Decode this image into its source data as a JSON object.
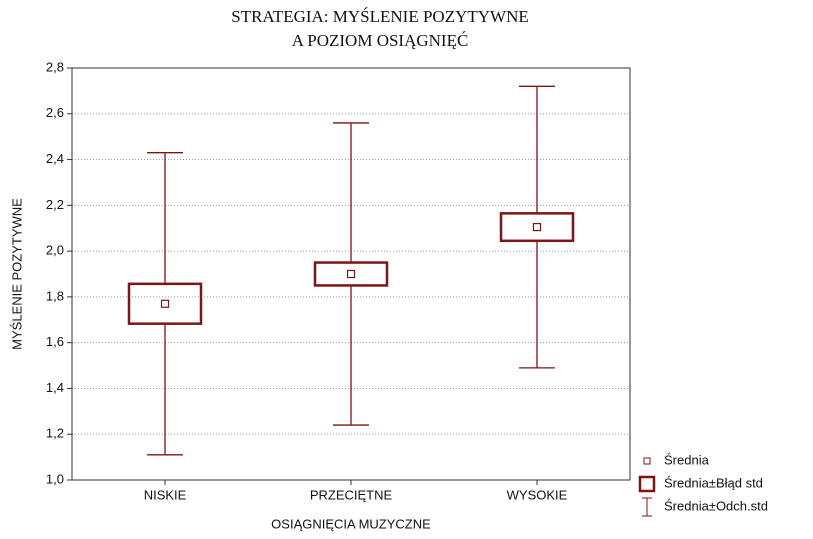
{
  "chart_data": {
    "type": "box",
    "title": [
      "STRATEGIA: MYŚLENIE POZYTYWNE",
      "A POZIOM OSIĄGNIĘĆ"
    ],
    "x_label": "OSIĄGNIĘCIA MUZYCZNE",
    "y_label": "MYŚLENIE POZYTYWNE",
    "categories": [
      "NISKIE",
      "PRZECIĘTNE",
      "WYSOKIE"
    ],
    "mean": [
      1.77,
      1.9,
      2.105
    ],
    "se": [
      0.087,
      0.05,
      0.06
    ],
    "sd": [
      0.66,
      0.66,
      0.615
    ],
    "color": "#7f1416",
    "legend": [
      "Średnia",
      "Średnia±Błąd std",
      "Średnia±Odch.std"
    ],
    "legend_position": "lower right",
    "ylim": [
      1.0,
      2.8
    ],
    "yticks": [
      {
        "value": 1.0,
        "label": "1,0"
      },
      {
        "value": 1.2,
        "label": "1,2"
      },
      {
        "value": 1.4,
        "label": "1,4"
      },
      {
        "value": 1.6,
        "label": "1,6"
      },
      {
        "value": 1.8,
        "label": "1,8"
      },
      {
        "value": 2.0,
        "label": "2,0"
      },
      {
        "value": 2.2,
        "label": "2,2"
      },
      {
        "value": 2.4,
        "label": "2,4"
      },
      {
        "value": 2.6,
        "label": "2,6"
      },
      {
        "value": 2.8,
        "label": "2,8"
      }
    ],
    "grid": true
  }
}
